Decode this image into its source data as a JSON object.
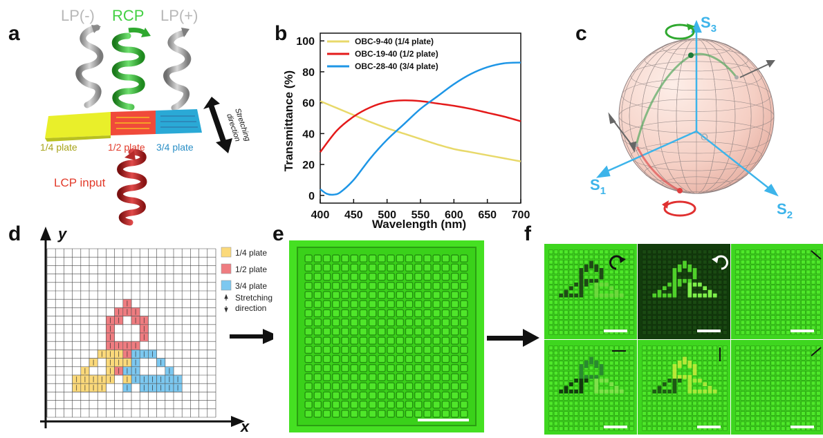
{
  "panels": {
    "a": {
      "label": "a",
      "top_labels": [
        "LP(-)",
        "RCP",
        "LP(+)"
      ],
      "plates": [
        "1/4 plate",
        "1/2 plate",
        "3/4 plate"
      ],
      "input_label": "LCP input",
      "stretch_label_1": "Stretching",
      "stretch_label_2": "direction",
      "colors": {
        "gray_helix": "#9a9a9a",
        "green_helix": "#2fa82f",
        "red_helix": "#b52a2a",
        "quarter": "#e9ef2a",
        "half": "#f04a3a",
        "three_quarter": "#2aa9d6"
      }
    },
    "b": {
      "label": "b"
    },
    "c": {
      "label": "c",
      "axes": {
        "s1": "S1",
        "s2": "S2",
        "s3": "S3"
      },
      "origin": "O",
      "axis_color": "#3db4ea"
    },
    "d": {
      "label": "d",
      "x_axis": "x",
      "y_axis": "y",
      "legend": [
        "1/4 plate",
        "1/2 plate",
        "3/4 plate"
      ],
      "legend_stretch_1": "Stretching",
      "legend_stretch_2": "direction",
      "colors": {
        "quarter": "#fbd97a",
        "half": "#ef7c80",
        "three_quarter": "#7cc8f0"
      }
    },
    "e": {
      "label": "e"
    },
    "f": {
      "label": "f"
    }
  },
  "chart_data": {
    "type": "line",
    "xlabel": "Wavelength (nm)",
    "ylabel": "Transmittance (%)",
    "xlim": [
      400,
      700
    ],
    "ylim": [
      -5,
      105
    ],
    "xticks": [
      400,
      450,
      500,
      550,
      600,
      650,
      700
    ],
    "yticks": [
      0,
      20,
      40,
      60,
      80,
      100
    ],
    "grid": false,
    "legend_position": "top-left",
    "series": [
      {
        "name": "OBC-9-40 (1/4 plate)",
        "color": "#e8d96a",
        "x": [
          400,
          425,
          450,
          475,
          500,
          525,
          550,
          575,
          600,
          625,
          650,
          675,
          700
        ],
        "y": [
          61,
          56.5,
          52,
          47.5,
          43.5,
          40,
          36.5,
          33,
          30,
          28,
          26,
          24,
          22
        ]
      },
      {
        "name": "OBC-19-40 (1/2 plate)",
        "color": "#e41a1a",
        "x": [
          400,
          425,
          450,
          475,
          500,
          525,
          550,
          575,
          600,
          625,
          650,
          675,
          700
        ],
        "y": [
          28,
          42,
          51,
          57,
          60.5,
          61.5,
          61,
          59.5,
          58,
          56,
          53.5,
          51,
          48
        ]
      },
      {
        "name": "OBC-28-40 (3/4 plate)",
        "color": "#1e96e6",
        "x": [
          400,
          410,
          420,
          430,
          450,
          475,
          500,
          525,
          550,
          575,
          600,
          625,
          650,
          675,
          700
        ],
        "y": [
          4,
          1,
          0.5,
          2,
          10,
          24,
          36,
          46,
          56,
          64,
          72,
          78.5,
          83,
          85.5,
          86
        ]
      }
    ]
  }
}
